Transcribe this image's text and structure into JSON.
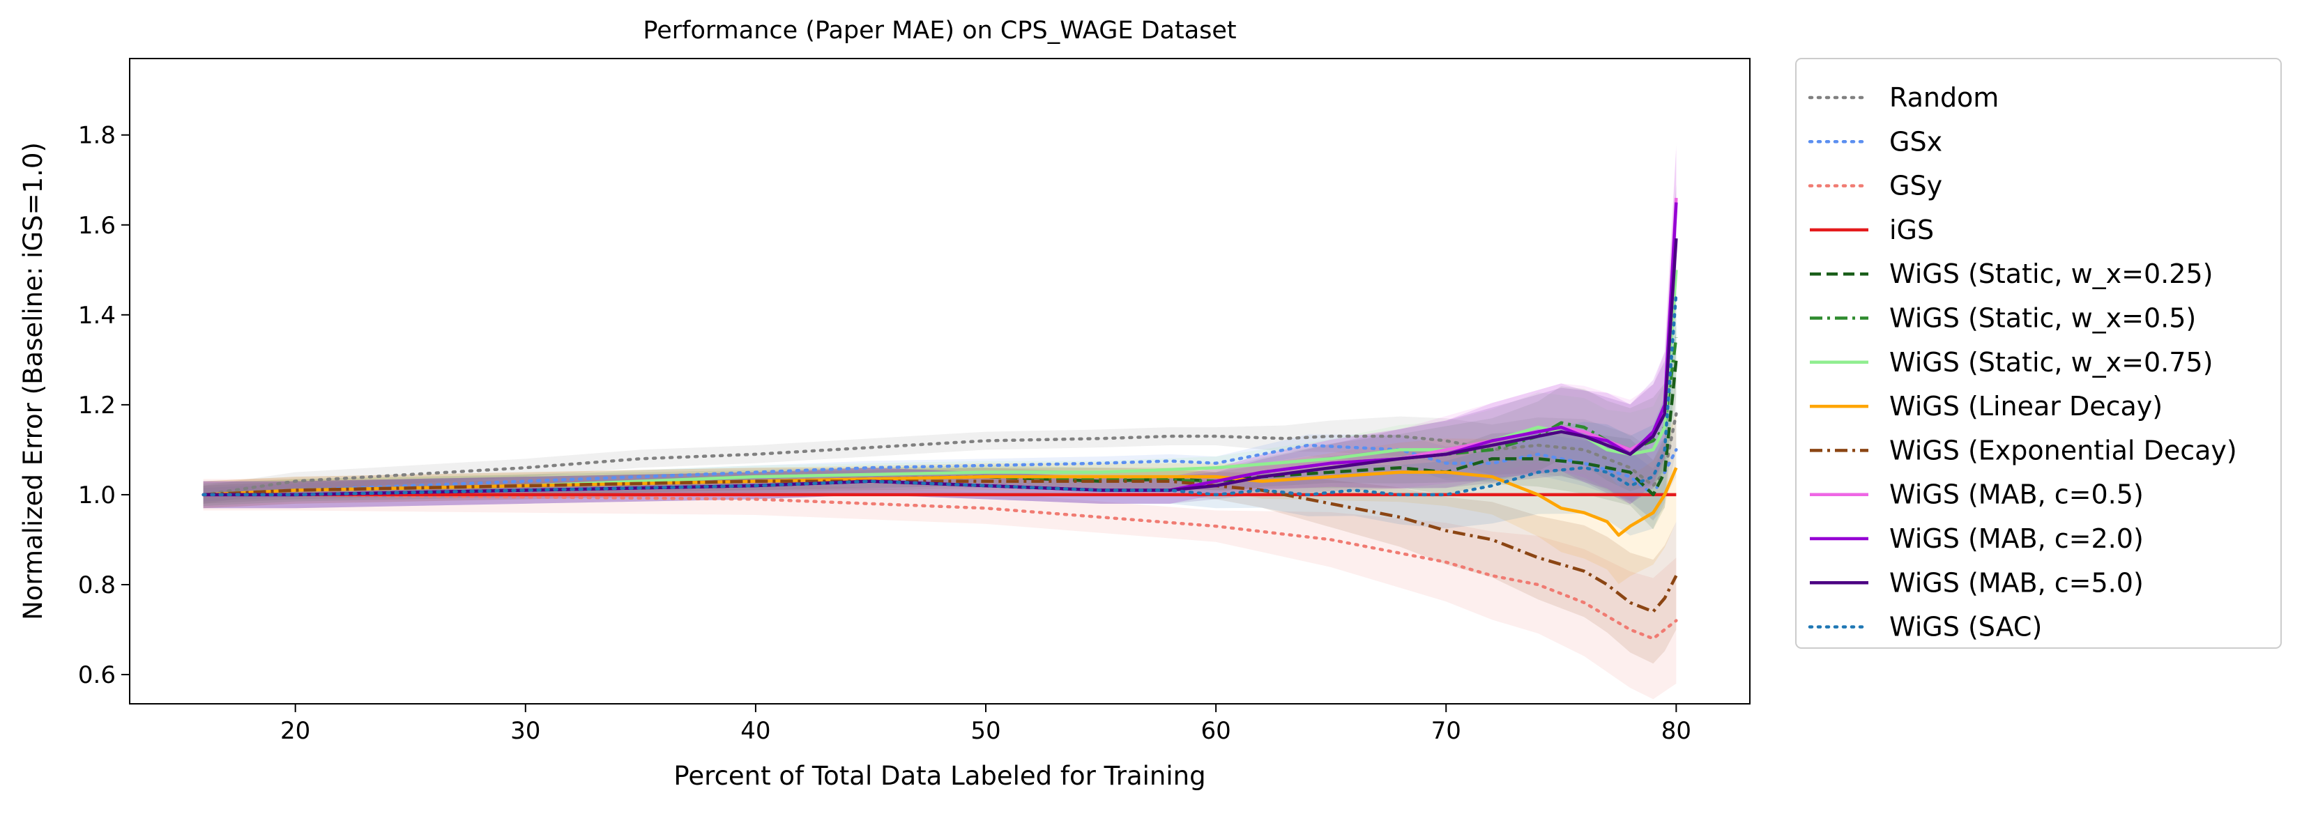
{
  "chart_data": {
    "type": "line",
    "title": "Performance (Paper MAE) on CPS_WAGE Dataset",
    "xlabel": "Percent of Total Data Labeled for Training",
    "ylabel": "Normalized Error (Baseline: iGS=1.0)",
    "xlim": [
      12.8,
      83.2
    ],
    "ylim": [
      0.535,
      1.97
    ],
    "xticks": [
      20,
      30,
      40,
      50,
      60,
      70,
      80
    ],
    "yticks": [
      0.6,
      0.8,
      1.0,
      1.2,
      1.4,
      1.6,
      1.8
    ],
    "grid": false,
    "legend_position": "outside-right",
    "series": [
      {
        "name": "Random",
        "color": "#808080",
        "dash": "dotted",
        "band": 0.02,
        "x": [
          16,
          20,
          25,
          30,
          35,
          40,
          45,
          50,
          55,
          58,
          60,
          63,
          65,
          68,
          70,
          72,
          74,
          76,
          77,
          78,
          79,
          79.5,
          80
        ],
        "y": [
          1.0,
          1.03,
          1.045,
          1.06,
          1.08,
          1.09,
          1.105,
          1.12,
          1.125,
          1.13,
          1.13,
          1.125,
          1.13,
          1.13,
          1.12,
          1.1,
          1.11,
          1.1,
          1.08,
          1.06,
          1.02,
          1.05,
          1.18
        ]
      },
      {
        "name": "GSx",
        "color": "#5b8ff0",
        "dash": "dotted",
        "band": 0.015,
        "x": [
          16,
          20,
          25,
          30,
          35,
          40,
          45,
          50,
          55,
          58,
          60,
          62,
          64,
          66,
          68,
          70,
          72,
          74,
          76,
          78,
          79,
          80
        ],
        "y": [
          1.0,
          1.01,
          1.02,
          1.03,
          1.04,
          1.05,
          1.06,
          1.065,
          1.07,
          1.075,
          1.07,
          1.09,
          1.11,
          1.105,
          1.1,
          1.07,
          1.07,
          1.09,
          1.07,
          1.04,
          1.0,
          1.1
        ]
      },
      {
        "name": "GSy",
        "color": "#f07b72",
        "dash": "dotted",
        "band": 0.035,
        "x": [
          16,
          20,
          30,
          40,
          45,
          50,
          55,
          60,
          65,
          70,
          72,
          74,
          76,
          77,
          78,
          79,
          79.5,
          80
        ],
        "y": [
          1.0,
          1.0,
          0.995,
          0.99,
          0.98,
          0.97,
          0.95,
          0.93,
          0.9,
          0.85,
          0.82,
          0.8,
          0.76,
          0.73,
          0.7,
          0.68,
          0.7,
          0.72
        ]
      },
      {
        "name": "iGS",
        "color": "#e41a1c",
        "dash": "solid",
        "band": 0,
        "x": [
          16,
          80
        ],
        "y": [
          1.0,
          1.0
        ]
      },
      {
        "name": "WiGS (Static, w_x=0.25)",
        "color": "#1a5e1a",
        "dash": "dashed",
        "band": 0.02,
        "x": [
          16,
          20,
          30,
          40,
          50,
          55,
          58,
          60,
          62,
          65,
          68,
          70,
          72,
          74,
          76,
          78,
          79,
          79.5,
          80
        ],
        "y": [
          1.0,
          1.01,
          1.02,
          1.03,
          1.04,
          1.03,
          1.035,
          1.03,
          1.04,
          1.05,
          1.06,
          1.05,
          1.08,
          1.08,
          1.07,
          1.05,
          1.0,
          1.05,
          1.3
        ]
      },
      {
        "name": "WiGS (Static, w_x=0.5)",
        "color": "#2e8b2e",
        "dash": "dashdot",
        "band": 0.025,
        "x": [
          16,
          20,
          30,
          40,
          50,
          55,
          60,
          62,
          65,
          68,
          70,
          72,
          74,
          75,
          76,
          77,
          78,
          79,
          79.5,
          80
        ],
        "y": [
          1.0,
          1.01,
          1.02,
          1.03,
          1.04,
          1.035,
          1.03,
          1.05,
          1.07,
          1.08,
          1.09,
          1.1,
          1.13,
          1.16,
          1.15,
          1.12,
          1.1,
          1.12,
          1.15,
          1.35
        ]
      },
      {
        "name": "WiGS (Static, w_x=0.75)",
        "color": "#90ee90",
        "dash": "solid",
        "band": 0.025,
        "x": [
          16,
          20,
          30,
          40,
          50,
          55,
          60,
          65,
          68,
          70,
          72,
          74,
          76,
          77,
          78,
          79,
          79.5,
          80
        ],
        "y": [
          1.0,
          1.01,
          1.02,
          1.04,
          1.05,
          1.05,
          1.06,
          1.08,
          1.1,
          1.1,
          1.12,
          1.15,
          1.13,
          1.1,
          1.09,
          1.1,
          1.15,
          1.5
        ]
      },
      {
        "name": "WiGS (Linear Decay)",
        "color": "#ffa500",
        "dash": "solid",
        "band": 0.03,
        "x": [
          16,
          20,
          30,
          40,
          50,
          55,
          60,
          62,
          65,
          68,
          70,
          72,
          74,
          75,
          76,
          77,
          77.5,
          78,
          79,
          79.5,
          80
        ],
        "y": [
          1.0,
          1.01,
          1.02,
          1.03,
          1.04,
          1.04,
          1.04,
          1.03,
          1.04,
          1.05,
          1.05,
          1.04,
          1.0,
          0.97,
          0.96,
          0.94,
          0.91,
          0.93,
          0.96,
          1.0,
          1.06
        ]
      },
      {
        "name": "WiGS (Exponential Decay)",
        "color": "#8b4513",
        "dash": "dashdot",
        "band": 0.03,
        "x": [
          16,
          20,
          30,
          40,
          50,
          55,
          58,
          60,
          62,
          64,
          66,
          68,
          70,
          72,
          74,
          76,
          77,
          78,
          79,
          79.5,
          80
        ],
        "y": [
          1.0,
          1.01,
          1.02,
          1.03,
          1.03,
          1.03,
          1.03,
          1.02,
          1.01,
          0.99,
          0.97,
          0.95,
          0.92,
          0.9,
          0.86,
          0.83,
          0.8,
          0.76,
          0.74,
          0.77,
          0.82
        ]
      },
      {
        "name": "WiGS (MAB, c=0.5)",
        "color": "#ee66e5",
        "dash": "solid",
        "band": 0.03,
        "x": [
          16,
          20,
          30,
          40,
          45,
          50,
          55,
          58,
          60,
          62,
          65,
          68,
          70,
          72,
          74,
          75,
          76,
          77,
          78,
          79,
          79.5,
          80
        ],
        "y": [
          1.0,
          1.0,
          1.01,
          1.02,
          1.03,
          1.02,
          1.01,
          1.01,
          1.03,
          1.05,
          1.07,
          1.08,
          1.1,
          1.12,
          1.14,
          1.15,
          1.14,
          1.12,
          1.1,
          1.13,
          1.2,
          1.66
        ]
      },
      {
        "name": "WiGS (MAB, c=2.0)",
        "color": "#9400d3",
        "dash": "solid",
        "band": 0.03,
        "x": [
          16,
          20,
          30,
          40,
          45,
          50,
          55,
          58,
          60,
          62,
          65,
          68,
          70,
          72,
          74,
          75,
          76,
          77,
          78,
          79,
          79.5,
          80
        ],
        "y": [
          1.0,
          1.0,
          1.01,
          1.02,
          1.03,
          1.02,
          1.01,
          1.01,
          1.03,
          1.05,
          1.07,
          1.08,
          1.09,
          1.12,
          1.14,
          1.15,
          1.13,
          1.12,
          1.09,
          1.14,
          1.2,
          1.65
        ]
      },
      {
        "name": "WiGS (MAB, c=5.0)",
        "color": "#4b0082",
        "dash": "solid",
        "band": 0.03,
        "x": [
          16,
          20,
          30,
          40,
          45,
          50,
          55,
          58,
          60,
          62,
          65,
          68,
          70,
          72,
          74,
          75,
          76,
          77,
          78,
          79,
          79.5,
          80
        ],
        "y": [
          1.0,
          1.0,
          1.01,
          1.02,
          1.03,
          1.02,
          1.01,
          1.01,
          1.02,
          1.04,
          1.06,
          1.08,
          1.09,
          1.11,
          1.13,
          1.14,
          1.13,
          1.11,
          1.09,
          1.13,
          1.18,
          1.57
        ]
      },
      {
        "name": "WiGS (SAC)",
        "color": "#1f77b4",
        "dash": "dotted",
        "band": 0.03,
        "x": [
          16,
          20,
          30,
          40,
          45,
          50,
          55,
          58,
          60,
          62,
          64,
          66,
          68,
          70,
          72,
          74,
          76,
          77,
          78,
          79,
          79.5,
          80
        ],
        "y": [
          1.0,
          1.0,
          1.01,
          1.02,
          1.03,
          1.02,
          1.01,
          1.01,
          1.0,
          1.01,
          1.0,
          1.01,
          1.0,
          1.0,
          1.02,
          1.05,
          1.06,
          1.05,
          1.02,
          1.04,
          1.1,
          1.45
        ]
      }
    ]
  }
}
